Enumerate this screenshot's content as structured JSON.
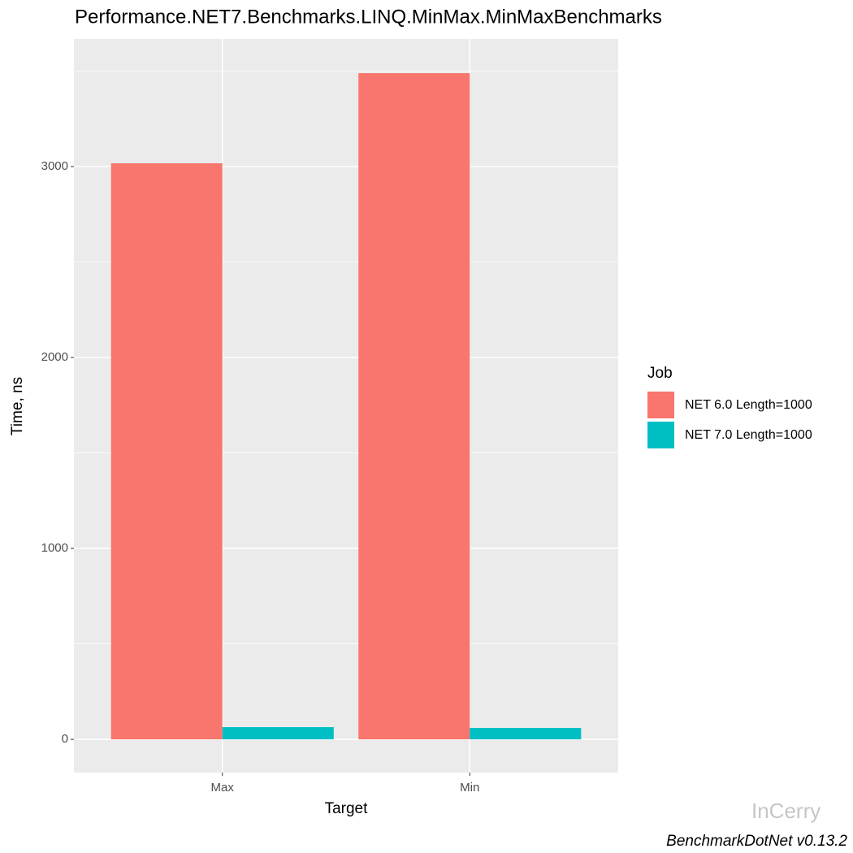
{
  "chart_data": {
    "type": "bar",
    "title": "Performance.NET7.Benchmarks.LINQ.MinMax.MinMaxBenchmarks",
    "x_label": "Target",
    "y_label": "Time, ns",
    "categories": [
      "Max",
      "Min"
    ],
    "legend_title": "Job",
    "series": [
      {
        "name": "NET 6.0 Length=1000",
        "color": "#f8766d",
        "values": [
          3017,
          3489
        ]
      },
      {
        "name": "NET 7.0 Length=1000",
        "color": "#00bfc4",
        "values": [
          64,
          60
        ]
      }
    ],
    "ylim": [
      -174,
      3668
    ],
    "yticks": [
      0,
      1000,
      2000,
      3000
    ],
    "grid": true,
    "legend_position": "right",
    "caption": "BenchmarkDotNet v0.13.2",
    "watermark": "InCerry"
  }
}
